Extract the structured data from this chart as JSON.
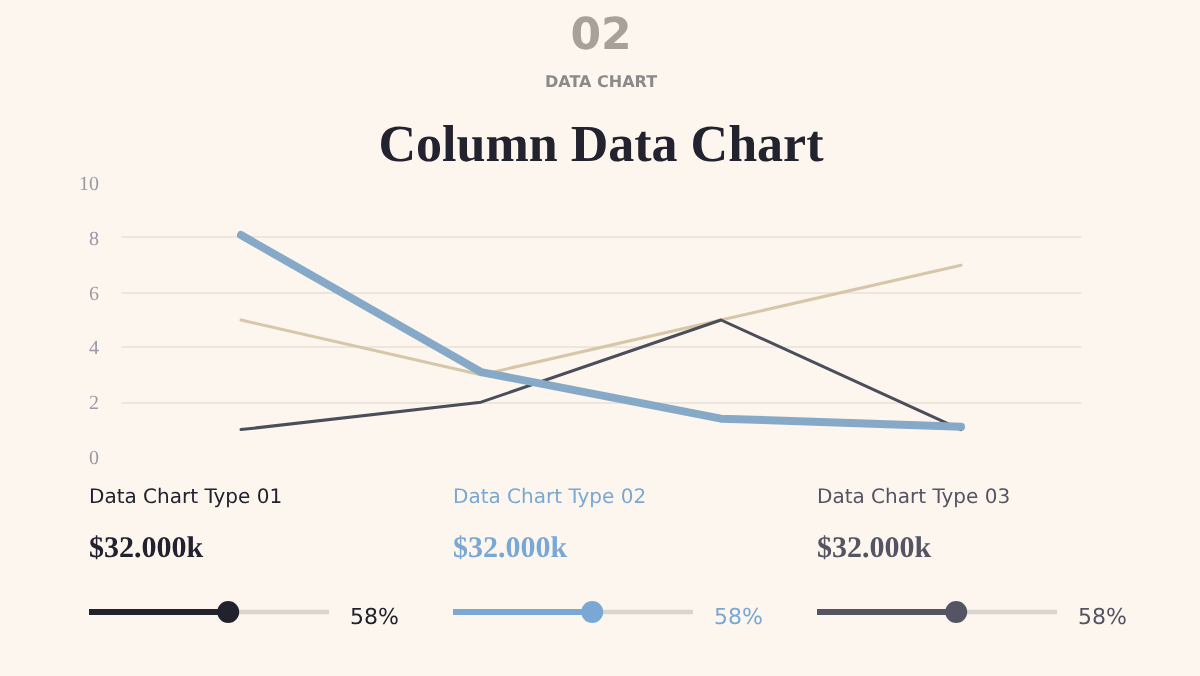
{
  "chart_data": [
    {
      "type": "line",
      "title": "Column Data Chart",
      "subtitle": "DATA CHART",
      "annotations": [
        "02"
      ],
      "categories": [
        null,
        null,
        null,
        null
      ],
      "ylim": [
        0,
        10
      ],
      "yticks": [
        0,
        2,
        4,
        6,
        8,
        10
      ],
      "grid": "y",
      "tick_labels": "y",
      "series": [
        {
          "color": "#d8c6a8",
          "values": [
            5,
            3,
            5,
            7
          ]
        },
        {
          "color": "#4a4d5a",
          "values": [
            1,
            2,
            5,
            1
          ]
        },
        {
          "color": "#86a9c8",
          "values": [
            8.1,
            3.1,
            1.4,
            1.1
          ]
        }
      ]
    },
    {
      "type": "other",
      "title": "Data Chart Type 01",
      "subtitle": "$32.000k",
      "values": [
        58
      ],
      "value_labels": [
        "58%"
      ],
      "color": "#22222e"
    },
    {
      "type": "other",
      "title": "Data Chart Type 02",
      "subtitle": "$32.000k",
      "values": [
        58
      ],
      "value_labels": [
        "58%"
      ],
      "color": "#7aa8d4"
    },
    {
      "type": "other",
      "title": "Data Chart Type 03",
      "subtitle": "$32.000k",
      "values": [
        58
      ],
      "value_labels": [
        "58%"
      ],
      "color": "#545462"
    }
  ]
}
